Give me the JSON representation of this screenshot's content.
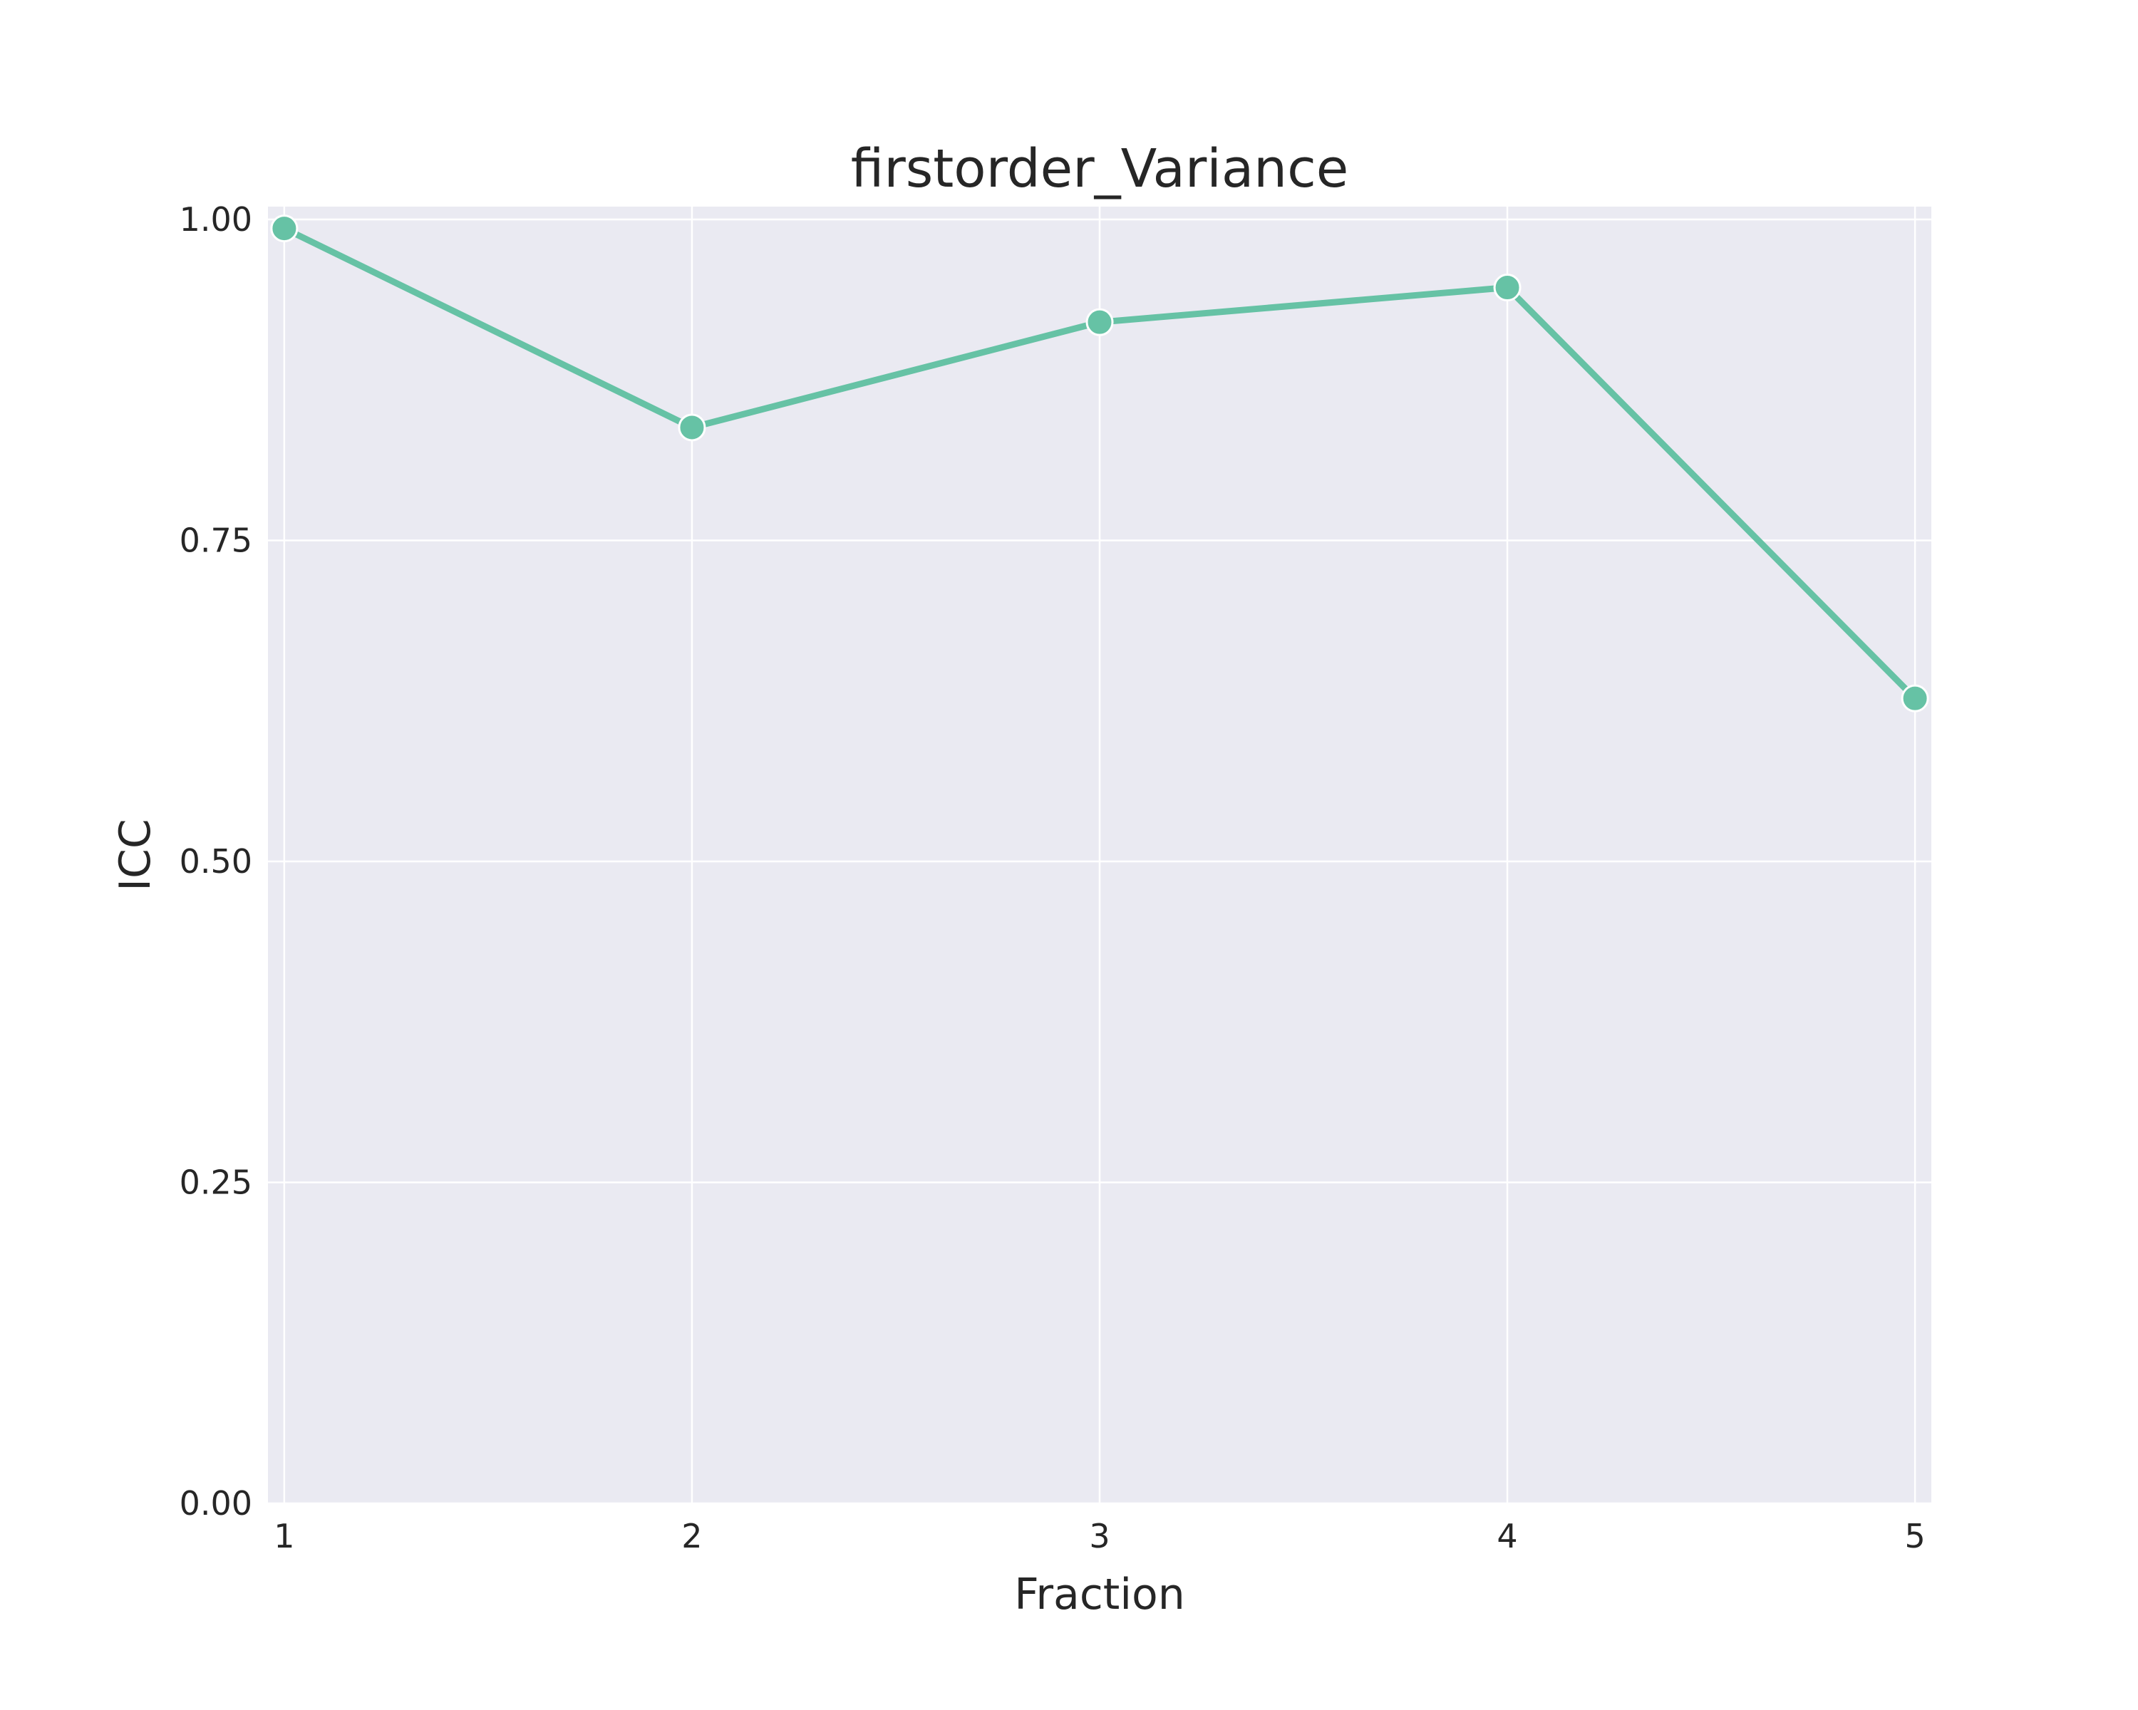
{
  "chart_data": {
    "type": "line",
    "title": "firstorder_Variance",
    "xlabel": "Fraction",
    "ylabel": "ICC",
    "x": [
      1,
      2,
      3,
      4,
      5
    ],
    "series": [
      {
        "values": [
          0.993,
          0.838,
          0.92,
          0.947,
          0.627
        ]
      }
    ],
    "xlim": [
      0.96,
      5.04
    ],
    "ylim": [
      0,
      1.01
    ],
    "xticks": [
      "1",
      "2",
      "3",
      "4",
      "5"
    ],
    "yticks": [
      "0.00",
      "0.25",
      "0.50",
      "0.75",
      "1.00"
    ],
    "grid": true,
    "colors": {
      "line": "#66c2a5",
      "plot_bg": "#eaeaf2",
      "grid": "#ffffff",
      "text": "#262626"
    }
  }
}
